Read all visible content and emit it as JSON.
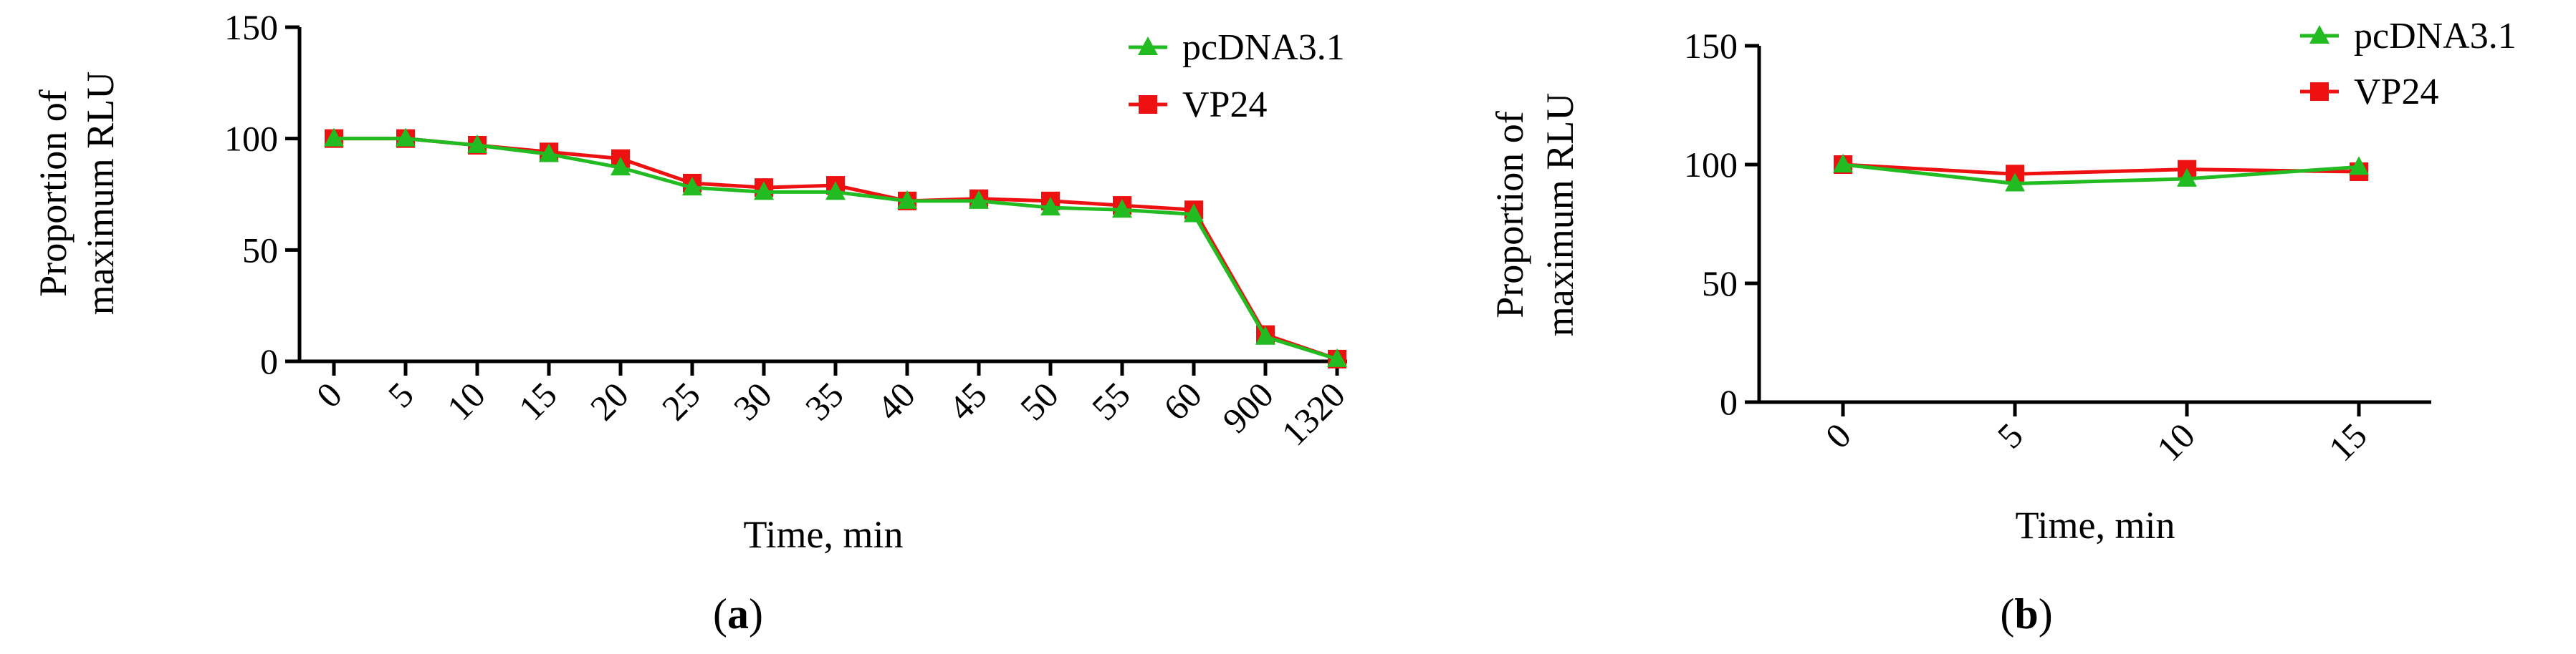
{
  "colors": {
    "pcDNA3.1": "#22bb22",
    "VP24": "#ee1111",
    "axis": "#000000"
  },
  "chart_data": [
    {
      "type": "line",
      "panel_label": "a",
      "title": "",
      "xlabel": "Time, min",
      "ylabel_lines": [
        "Proportion of",
        "maximum RLU"
      ],
      "categories": [
        "0",
        "5",
        "10",
        "15",
        "20",
        "25",
        "30",
        "35",
        "40",
        "45",
        "50",
        "55",
        "60",
        "900",
        "1320"
      ],
      "ylim": [
        0,
        150
      ],
      "yticks": [
        "0",
        "50",
        "100",
        "150"
      ],
      "legend_position": "top-right",
      "series": [
        {
          "name": "pcDNA3.1",
          "marker": "triangle",
          "values": [
            100,
            100,
            97,
            93,
            87,
            78,
            76,
            76,
            72,
            72,
            69,
            68,
            66,
            11,
            1
          ]
        },
        {
          "name": "VP24",
          "marker": "square",
          "values": [
            100,
            100,
            97,
            94,
            91,
            80,
            78,
            79,
            72,
            73,
            72,
            70,
            68,
            12,
            1
          ]
        }
      ]
    },
    {
      "type": "line",
      "panel_label": "b",
      "title": "",
      "xlabel": "Time, min",
      "ylabel_lines": [
        "Proportion of",
        "maximum RLU"
      ],
      "categories": [
        "0",
        "5",
        "10",
        "15"
      ],
      "ylim": [
        0,
        150
      ],
      "yticks": [
        "0",
        "50",
        "100",
        "150"
      ],
      "legend_position": "top-right",
      "series": [
        {
          "name": "pcDNA3.1",
          "marker": "triangle",
          "values": [
            100,
            92,
            94,
            99
          ]
        },
        {
          "name": "VP24",
          "marker": "square",
          "values": [
            100,
            96,
            98,
            97
          ]
        }
      ]
    }
  ]
}
